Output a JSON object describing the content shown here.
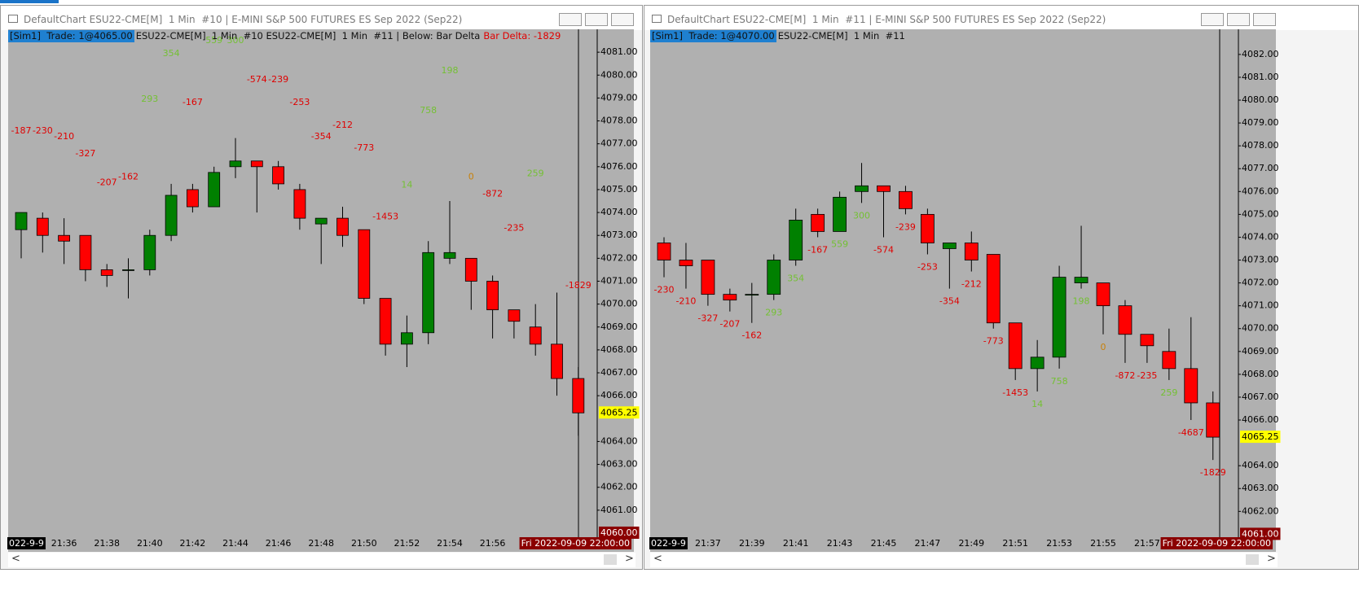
{
  "windows": [
    {
      "title": "DefaultChart ESU22-CME[M]  1 Min  #10 | E-MINI S&P 500 FUTURES ES Sep 2022 (Sep22)",
      "header": {
        "account": "[Sim1]  Trade: 1@4065.00",
        "symbol": "ESU22-CME[M]  1 Min  #10 ESU22-CME[M]  1 Min  #11 | Below: Bar Delta",
        "indicator": "Bar Delta: -1829"
      }
    },
    {
      "title": "DefaultChart ESU22-CME[M]  1 Min  #11 | E-MINI S&P 500 FUTURES ES Sep 2022 (Sep22)",
      "header": {
        "account": "[Sim1]  Trade: 1@4070.00",
        "symbol": "ESU22-CME[M]  1 Min  #11"
      }
    }
  ],
  "chart_data": [
    {
      "type": "candlestick",
      "categories": [
        "022-9-9",
        null,
        "21:36",
        null,
        "21:38",
        null,
        "21:40",
        null,
        "21:42",
        null,
        "21:44",
        null,
        "21:46",
        null,
        "21:48",
        null,
        "21:50",
        null,
        "21:52",
        null,
        "21:54",
        null,
        "21:56",
        null,
        null,
        null,
        "Fri 2022-09-09 22:00:00"
      ],
      "open": [
        4073.25,
        4073.75,
        4073.0,
        4073.0,
        4071.5,
        4071.5,
        4071.5,
        4073.0,
        4075.0,
        4074.25,
        4076.0,
        4076.25,
        4076.0,
        4075.0,
        4073.5,
        4073.75,
        4073.25,
        4070.25,
        4068.25,
        4068.75,
        4072.0,
        4072.0,
        4071.0,
        4069.75,
        4069.0,
        4068.25,
        4066.75
      ],
      "high": [
        4074.0,
        4074.0,
        4073.75,
        4073.0,
        4071.75,
        4072.0,
        4073.25,
        4075.25,
        4075.25,
        4076.0,
        4077.25,
        4076.25,
        4076.25,
        4075.25,
        4073.75,
        4074.25,
        4073.25,
        4070.25,
        4069.5,
        4072.75,
        4074.5,
        4072.0,
        4071.25,
        4069.75,
        4070.0,
        4070.5,
        4067.25
      ],
      "low": [
        4072.0,
        4072.25,
        4071.75,
        4071.0,
        4070.75,
        4070.25,
        4071.25,
        4072.75,
        4074.0,
        4074.25,
        4075.5,
        4074.0,
        4075.0,
        4073.25,
        4071.75,
        4072.5,
        4070.0,
        4067.75,
        4067.25,
        4068.25,
        4071.75,
        4069.75,
        4068.5,
        4068.5,
        4067.75,
        4066.0,
        4064.25
      ],
      "close": [
        4074.0,
        4073.0,
        4072.75,
        4071.5,
        4071.25,
        4071.5,
        4073.0,
        4074.75,
        4074.25,
        4075.75,
        4076.25,
        4076.0,
        4075.25,
        4073.75,
        4073.75,
        4073.0,
        4070.25,
        4068.25,
        4068.75,
        4072.25,
        4072.25,
        4071.0,
        4069.75,
        4069.25,
        4068.25,
        4066.75,
        4065.25
      ],
      "delta": [
        -187,
        -230,
        -210,
        -327,
        -207,
        -162,
        293,
        354,
        -167,
        559,
        300,
        -574,
        -239,
        -253,
        -354,
        -212,
        -773,
        -1453,
        14,
        758,
        198,
        0,
        -872,
        -235,
        259,
        null,
        -1829
      ],
      "ylim": [
        4059.75,
        4082.0
      ],
      "yticks": [
        {
          "value": 4061,
          "label": "4061.00"
        },
        {
          "value": 4062,
          "label": "4062.00"
        },
        {
          "value": 4063,
          "label": "4063.00"
        },
        {
          "value": 4064,
          "label": "4064.00"
        },
        {
          "value": 4066,
          "label": "4066.00"
        },
        {
          "value": 4067,
          "label": "4067.00"
        },
        {
          "value": 4068,
          "label": "4068.00"
        },
        {
          "value": 4069,
          "label": "4069.00"
        },
        {
          "value": 4070,
          "label": "4070.00"
        },
        {
          "value": 4071,
          "label": "4071.00"
        },
        {
          "value": 4072,
          "label": "4072.00"
        },
        {
          "value": 4073,
          "label": "4073.00"
        },
        {
          "value": 4074,
          "label": "4074.00"
        },
        {
          "value": 4075,
          "label": "4075.00"
        },
        {
          "value": 4076,
          "label": "4076.00"
        },
        {
          "value": 4077,
          "label": "4077.00"
        },
        {
          "value": 4078,
          "label": "4078.00"
        },
        {
          "value": 4079,
          "label": "4079.00"
        },
        {
          "value": 4080,
          "label": "4080.00"
        },
        {
          "value": 4081,
          "label": "4081.00"
        }
      ],
      "bottom_marker": {
        "value": 4060,
        "label": "4060.00"
      },
      "last_price": 4065.25,
      "up_color": "#008000",
      "down_color": "#ff0000",
      "background": "#b0b0b0",
      "delta_colors": {
        "positive": "#74c034",
        "negative": "#e00000",
        "zero": "#c8800a"
      }
    },
    {
      "type": "candlestick",
      "categories": [
        "022-9-9",
        null,
        "21:37",
        null,
        "21:39",
        null,
        "21:41",
        null,
        "21:43",
        null,
        "21:45",
        null,
        "21:47",
        null,
        "21:49",
        null,
        "21:51",
        null,
        "21:53",
        null,
        "21:55",
        null,
        "21:57",
        null,
        null,
        "Fri 2022-09-09 22:00:00"
      ],
      "open": [
        4073.75,
        4073.0,
        4073.0,
        4071.5,
        4071.5,
        4071.5,
        4073.0,
        4075.0,
        4074.25,
        4076.0,
        4076.25,
        4076.0,
        4075.0,
        4073.5,
        4073.75,
        4073.25,
        4070.25,
        4068.25,
        4068.75,
        4072.0,
        4072.0,
        4071.0,
        4069.75,
        4069.0,
        4068.25,
        4066.75
      ],
      "high": [
        4074.0,
        4073.75,
        4073.0,
        4071.75,
        4072.0,
        4073.25,
        4075.25,
        4075.25,
        4076.0,
        4077.25,
        4076.25,
        4076.25,
        4075.25,
        4073.75,
        4074.25,
        4073.25,
        4070.25,
        4069.5,
        4072.75,
        4074.5,
        4072.0,
        4071.25,
        4069.75,
        4070.0,
        4070.5,
        4067.25
      ],
      "low": [
        4072.25,
        4071.75,
        4071.0,
        4070.75,
        4070.25,
        4071.25,
        4072.75,
        4074.0,
        4074.25,
        4075.5,
        4074.0,
        4075.0,
        4073.25,
        4071.75,
        4072.5,
        4070.0,
        4067.75,
        4067.25,
        4068.25,
        4071.75,
        4069.75,
        4068.5,
        4068.5,
        4067.75,
        4066.0,
        4064.25
      ],
      "close": [
        4073.0,
        4072.75,
        4071.5,
        4071.25,
        4071.5,
        4073.0,
        4074.75,
        4074.25,
        4075.75,
        4076.25,
        4076.0,
        4075.25,
        4073.75,
        4073.75,
        4073.0,
        4070.25,
        4068.25,
        4068.75,
        4072.25,
        4072.25,
        4071.0,
        4069.75,
        4069.25,
        4068.25,
        4066.75,
        4065.25
      ],
      "delta": [
        -230,
        -210,
        -327,
        -207,
        -162,
        293,
        354,
        -167,
        559,
        300,
        -574,
        -239,
        -253,
        -354,
        -212,
        -773,
        -1453,
        14,
        758,
        198,
        0,
        -872,
        -235,
        259,
        -4687,
        -1829
      ],
      "ylim": [
        4060.8,
        4083.1
      ],
      "yticks": [
        {
          "value": 4062,
          "label": "4062.00"
        },
        {
          "value": 4063,
          "label": "4063.00"
        },
        {
          "value": 4064,
          "label": "4064.00"
        },
        {
          "value": 4066,
          "label": "4066.00"
        },
        {
          "value": 4067,
          "label": "4067.00"
        },
        {
          "value": 4068,
          "label": "4068.00"
        },
        {
          "value": 4069,
          "label": "4069.00"
        },
        {
          "value": 4070,
          "label": "4070.00"
        },
        {
          "value": 4071,
          "label": "4071.00"
        },
        {
          "value": 4072,
          "label": "4072.00"
        },
        {
          "value": 4073,
          "label": "4073.00"
        },
        {
          "value": 4074,
          "label": "4074.00"
        },
        {
          "value": 4075,
          "label": "4075.00"
        },
        {
          "value": 4076,
          "label": "4076.00"
        },
        {
          "value": 4077,
          "label": "4077.00"
        },
        {
          "value": 4078,
          "label": "4078.00"
        },
        {
          "value": 4079,
          "label": "4079.00"
        },
        {
          "value": 4080,
          "label": "4080.00"
        },
        {
          "value": 4081,
          "label": "4081.00"
        },
        {
          "value": 4082,
          "label": "4082.00"
        }
      ],
      "bottom_marker": {
        "value": 4061,
        "label": "4061.00"
      },
      "last_price": 4065.25,
      "up_color": "#008000",
      "down_color": "#ff0000",
      "background": "#b0b0b0",
      "delta_colors": {
        "positive": "#74c034",
        "negative": "#e00000",
        "zero": "#c8800a"
      }
    }
  ]
}
